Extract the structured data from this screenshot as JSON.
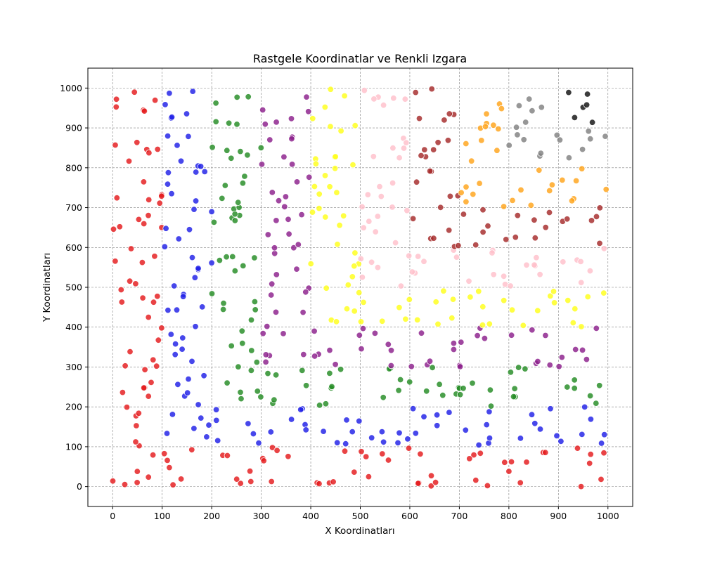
{
  "chart_data": {
    "type": "scatter",
    "title": "Rastgele Koordinatlar ve Renkli Izgara",
    "xlabel": "X Koordinatları",
    "ylabel": "Y Koordinatları",
    "xlim": [
      -50,
      1050
    ],
    "ylim": [
      -50,
      1050
    ],
    "xticks": [
      0,
      100,
      200,
      300,
      400,
      500,
      600,
      700,
      800,
      900,
      1000
    ],
    "yticks": [
      0,
      100,
      200,
      300,
      400,
      500,
      600,
      700,
      800,
      900,
      1000
    ],
    "xtick_labels": [
      "0",
      "100",
      "200",
      "300",
      "400",
      "500",
      "600",
      "700",
      "800",
      "900",
      "1000"
    ],
    "ytick_labels": [
      "0",
      "100",
      "200",
      "300",
      "400",
      "500",
      "600",
      "700",
      "800",
      "900",
      "1000"
    ],
    "grid": true,
    "grid_style": "dashed",
    "grid_color": "#808080",
    "marker_edge_color": "#ffffff",
    "point_count_per_cell": 6,
    "cell_size": 100,
    "colors": [
      "#e41a1c",
      "#1f1fe6",
      "#238b23",
      "#8b1f8b",
      "#ffff1a",
      "#ffc0cb",
      "#a52a2a",
      "#ffa31a",
      "#808080",
      "#111111"
    ],
    "cells": [
      [
        "#e41a1c",
        "#e41a1c",
        "#e41a1c",
        "#e41a1c",
        "#e41a1c",
        "#e41a1c",
        "#e41a1c",
        "#e41a1c",
        "#e41a1c",
        "#e41a1c"
      ],
      [
        "#e41a1c",
        "#1f1fe6",
        "#1f1fe6",
        "#1f1fe6",
        "#1f1fe6",
        "#1f1fe6",
        "#1f1fe6",
        "#1f1fe6",
        "#1f1fe6",
        "#1f1fe6"
      ],
      [
        "#e41a1c",
        "#1f1fe6",
        "#238b23",
        "#238b23",
        "#238b23",
        "#238b23",
        "#238b23",
        "#238b23",
        "#238b23",
        "#238b23"
      ],
      [
        "#e41a1c",
        "#1f1fe6",
        "#238b23",
        "#8b1f8b",
        "#8b1f8b",
        "#8b1f8b",
        "#8b1f8b",
        "#8b1f8b",
        "#8b1f8b",
        "#8b1f8b"
      ],
      [
        "#e41a1c",
        "#1f1fe6",
        "#238b23",
        "#8b1f8b",
        "#ffff1a",
        "#ffff1a",
        "#ffff1a",
        "#ffff1a",
        "#ffff1a",
        "#ffff1a"
      ],
      [
        "#e41a1c",
        "#1f1fe6",
        "#238b23",
        "#8b1f8b",
        "#ffff1a",
        "#ffc0cb",
        "#ffc0cb",
        "#ffc0cb",
        "#ffc0cb",
        "#ffc0cb"
      ],
      [
        "#e41a1c",
        "#1f1fe6",
        "#238b23",
        "#8b1f8b",
        "#ffff1a",
        "#ffc0cb",
        "#a52a2a",
        "#a52a2a",
        "#a52a2a",
        "#a52a2a"
      ],
      [
        "#e41a1c",
        "#1f1fe6",
        "#238b23",
        "#8b1f8b",
        "#ffff1a",
        "#ffc0cb",
        "#a52a2a",
        "#ffa31a",
        "#ffa31a",
        "#ffa31a"
      ],
      [
        "#e41a1c",
        "#1f1fe6",
        "#238b23",
        "#8b1f8b",
        "#ffff1a",
        "#ffc0cb",
        "#a52a2a",
        "#ffa31a",
        "#808080",
        "#808080"
      ],
      [
        "#e41a1c",
        "#1f1fe6",
        "#238b23",
        "#8b1f8b",
        "#ffff1a",
        "#ffc0cb",
        "#a52a2a",
        "#ffa31a",
        "#808080",
        "#111111"
      ]
    ]
  }
}
